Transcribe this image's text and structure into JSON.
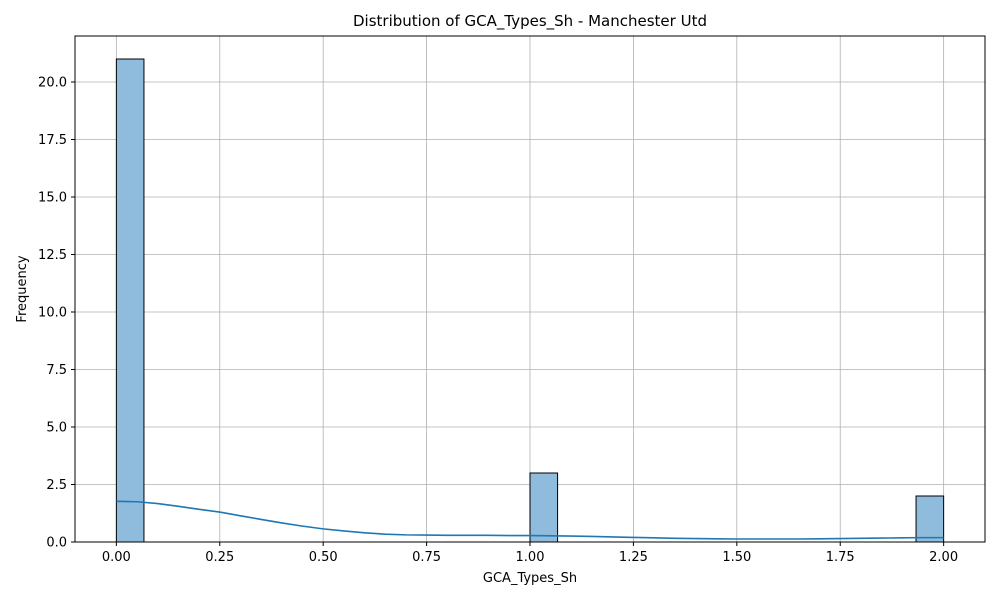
{
  "chart_data": {
    "type": "bar",
    "subtype": "histogram-with-kde",
    "title": "Distribution of GCA_Types_Sh - Manchester Utd",
    "xlabel": "GCA_Types_Sh",
    "ylabel": "Frequency",
    "xlim": [
      -0.1,
      2.1
    ],
    "ylim": [
      0,
      22
    ],
    "xticks": [
      0.0,
      0.25,
      0.5,
      0.75,
      1.0,
      1.25,
      1.5,
      1.75,
      2.0
    ],
    "xtick_labels": [
      "0.00",
      "0.25",
      "0.50",
      "0.75",
      "1.00",
      "1.25",
      "1.50",
      "1.75",
      "2.00"
    ],
    "yticks": [
      0.0,
      2.5,
      5.0,
      7.5,
      10.0,
      12.5,
      15.0,
      17.5,
      20.0
    ],
    "ytick_labels": [
      "0.0",
      "2.5",
      "5.0",
      "7.5",
      "10.0",
      "12.5",
      "15.0",
      "17.5",
      "20.0"
    ],
    "grid": true,
    "bins": [
      {
        "x0": 0.0,
        "x1": 0.0667,
        "count": 21
      },
      {
        "x0": 1.0,
        "x1": 1.0667,
        "count": 3
      },
      {
        "x0": 1.9333,
        "x1": 2.0,
        "count": 2
      }
    ],
    "kde": {
      "x": [
        0.0,
        0.05,
        0.1,
        0.15,
        0.2,
        0.25,
        0.3,
        0.35,
        0.4,
        0.45,
        0.5,
        0.55,
        0.6,
        0.65,
        0.7,
        0.75,
        0.8,
        0.85,
        0.9,
        0.95,
        1.0,
        1.05,
        1.1,
        1.15,
        1.2,
        1.25,
        1.3,
        1.35,
        1.4,
        1.45,
        1.5,
        1.55,
        1.6,
        1.65,
        1.7,
        1.75,
        1.8,
        1.85,
        1.9,
        1.95,
        2.0
      ],
      "y": [
        1.77,
        1.75,
        1.67,
        1.55,
        1.42,
        1.3,
        1.14,
        0.98,
        0.83,
        0.69,
        0.57,
        0.48,
        0.4,
        0.34,
        0.31,
        0.3,
        0.29,
        0.29,
        0.29,
        0.28,
        0.28,
        0.27,
        0.26,
        0.24,
        0.22,
        0.2,
        0.18,
        0.16,
        0.15,
        0.14,
        0.13,
        0.13,
        0.13,
        0.13,
        0.14,
        0.15,
        0.16,
        0.17,
        0.18,
        0.19,
        0.19
      ]
    },
    "colors": {
      "bar_fill": "#8fbcdc",
      "bar_edge": "#000000",
      "kde_line": "#1f77b4",
      "grid": "#b0b0b0"
    }
  }
}
